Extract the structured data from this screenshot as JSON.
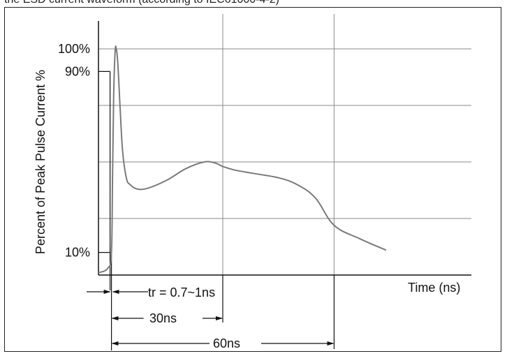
{
  "header_fragment": "the ESD current waveform (according to IEC61000-4-2)",
  "chart_data": {
    "type": "line",
    "title": "",
    "xlabel": "Time (ns)",
    "ylabel": "Percent of Peak Pulse Current %",
    "y_ticks": [
      "100%",
      "90%",
      "10%"
    ],
    "y_tick_values": [
      100,
      90,
      10
    ],
    "xlim": [
      -3.5,
      97
    ],
    "ylim": [
      0,
      100
    ],
    "grid": true,
    "series": [
      {
        "x": [
          -3.5,
          -1,
          0,
          0.3,
          0.6,
          1.0,
          1.3,
          1.7,
          2.3,
          3,
          4,
          5,
          7,
          10,
          15,
          20,
          25,
          28,
          30,
          33,
          38,
          45,
          50,
          55,
          60,
          67,
          74
        ],
        "y": [
          1,
          3,
          10,
          45,
          80,
          99,
          100,
          94,
          75,
          55,
          43,
          40,
          38,
          38.5,
          42,
          47,
          50,
          49.5,
          48,
          46.5,
          45,
          43,
          40,
          34,
          22,
          16,
          11
        ]
      }
    ],
    "annotations": {
      "rise_time": "tr = 0.7~1ns",
      "span_30": "30ns",
      "span_60": "60ns"
    }
  }
}
